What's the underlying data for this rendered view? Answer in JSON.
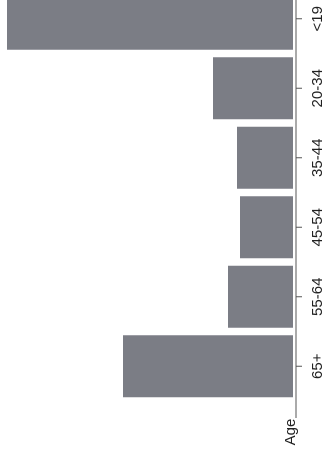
{
  "chart_data": {
    "type": "bar",
    "orientation": "horizontal",
    "rotated_view": "rotated 90 degrees clockwise",
    "categories": [
      "<19",
      "20-34",
      "35-44",
      "45-54",
      "55-64",
      "65+"
    ],
    "values": [
      286,
      80,
      56,
      53,
      65,
      170
    ],
    "axis_title": "Age",
    "bar_color": "#7b7d85",
    "axis_color": "#555555",
    "legend": "none",
    "grid": false
  }
}
